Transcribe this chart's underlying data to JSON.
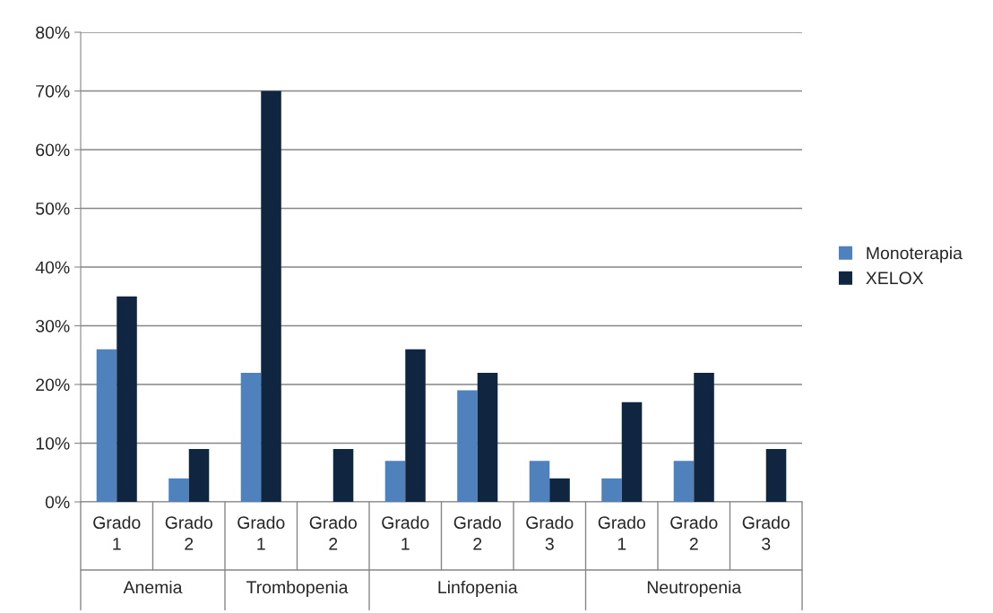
{
  "chart_data": {
    "type": "bar",
    "categories": [
      "Grado 1",
      "Grado 2",
      "Grado 1",
      "Grado 2",
      "Grado 1",
      "Grado 2",
      "Grado 3",
      "Grado 1",
      "Grado 2",
      "Grado 3"
    ],
    "series": [
      {
        "name": "Monoterapia",
        "color": "#4f81bd",
        "values": [
          26,
          4,
          22,
          null,
          7,
          19,
          7,
          4,
          7,
          null
        ]
      },
      {
        "name": "XELOX",
        "color": "#10253f",
        "values": [
          35,
          9,
          70,
          9,
          26,
          22,
          4,
          17,
          22,
          9
        ]
      }
    ],
    "annotations": [
      "Anemia",
      "Trombopenia",
      "Linfopenia",
      "Neutropenia"
    ],
    "ylim": [
      0,
      80
    ],
    "yticks": [
      {
        "value": 0,
        "label": "0%"
      },
      {
        "value": 10,
        "label": "10%"
      },
      {
        "value": 20,
        "label": "20%"
      },
      {
        "value": 30,
        "label": "30%"
      },
      {
        "value": 40,
        "label": "40%"
      },
      {
        "value": 50,
        "label": "50%"
      },
      {
        "value": 60,
        "label": "60%"
      },
      {
        "value": 70,
        "label": "70%"
      },
      {
        "value": 80,
        "label": "80%"
      }
    ],
    "grid": "y",
    "legend": "right"
  }
}
